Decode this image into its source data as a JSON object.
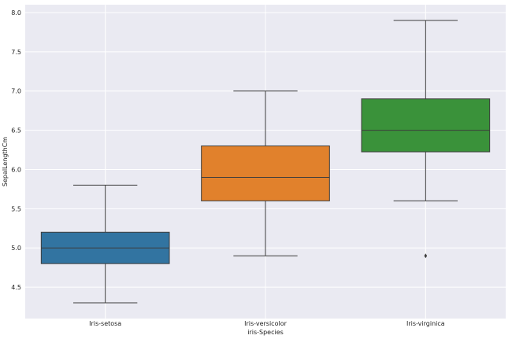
{
  "chart_data": {
    "type": "box",
    "xlabel": "iris-Species",
    "ylabel": "SepalLengthCm",
    "ylim": [
      4.1,
      8.1
    ],
    "yticks": [
      "4.5",
      "5.0",
      "5.5",
      "6.0",
      "6.5",
      "7.0",
      "7.5",
      "8.0"
    ],
    "categories": [
      "Iris-setosa",
      "Iris-versicolor",
      "Iris-virginica"
    ],
    "boxes": [
      {
        "category": "Iris-setosa",
        "whisker_low": 4.3,
        "q1": 4.8,
        "median": 5.0,
        "q3": 5.2,
        "whisker_high": 5.8,
        "outliers": [],
        "color": "#3274a1"
      },
      {
        "category": "Iris-versicolor",
        "whisker_low": 4.9,
        "q1": 5.6,
        "median": 5.9,
        "q3": 6.3,
        "whisker_high": 7.0,
        "outliers": [],
        "color": "#e1812c"
      },
      {
        "category": "Iris-virginica",
        "whisker_low": 5.6,
        "q1": 6.225,
        "median": 6.5,
        "q3": 6.9,
        "whisker_high": 7.9,
        "outliers": [
          4.9
        ],
        "color": "#3a923a"
      }
    ],
    "grid": true,
    "background_color": "#eaeaf2",
    "grid_color": "#ffffff",
    "line_color": "#3d3d3d"
  }
}
